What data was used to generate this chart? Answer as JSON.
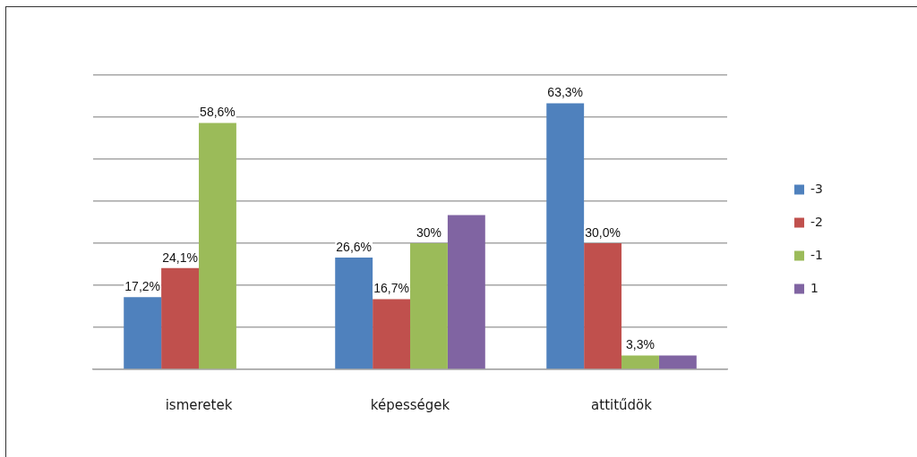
{
  "chart_data": {
    "type": "bar",
    "categories": [
      "ismeretek",
      "képességek",
      "attitűdök"
    ],
    "series": [
      {
        "name": "-3",
        "color": "#4f81bd",
        "values": [
          17.2,
          26.6,
          63.3
        ],
        "value_labels": [
          "17,2%",
          "26,6%",
          "63,3%"
        ]
      },
      {
        "name": "-2",
        "color": "#c0504d",
        "values": [
          24.1,
          16.7,
          30.0
        ],
        "value_labels": [
          "24,1%",
          "16,7%",
          "30,0%"
        ]
      },
      {
        "name": "-1",
        "color": "#9bbb59",
        "values": [
          58.6,
          30,
          3.3
        ],
        "value_labels": [
          "58,6%",
          "30%",
          "3,3%"
        ]
      },
      {
        "name": "1",
        "color": "#8064a2",
        "values": [
          null,
          36.7,
          3.3
        ]
      }
    ],
    "ylim": [
      0,
      70
    ],
    "yticks": [
      {
        "value": 0,
        "label": null
      },
      {
        "value": 10,
        "label": null
      },
      {
        "value": 20,
        "label": null
      },
      {
        "value": 30,
        "label": null
      },
      {
        "value": 40,
        "label": null
      },
      {
        "value": 50,
        "label": null
      },
      {
        "value": 60,
        "label": null
      },
      {
        "value": 70,
        "label": null
      }
    ],
    "grid": "y",
    "tick_labels": "x",
    "legend": "right"
  }
}
